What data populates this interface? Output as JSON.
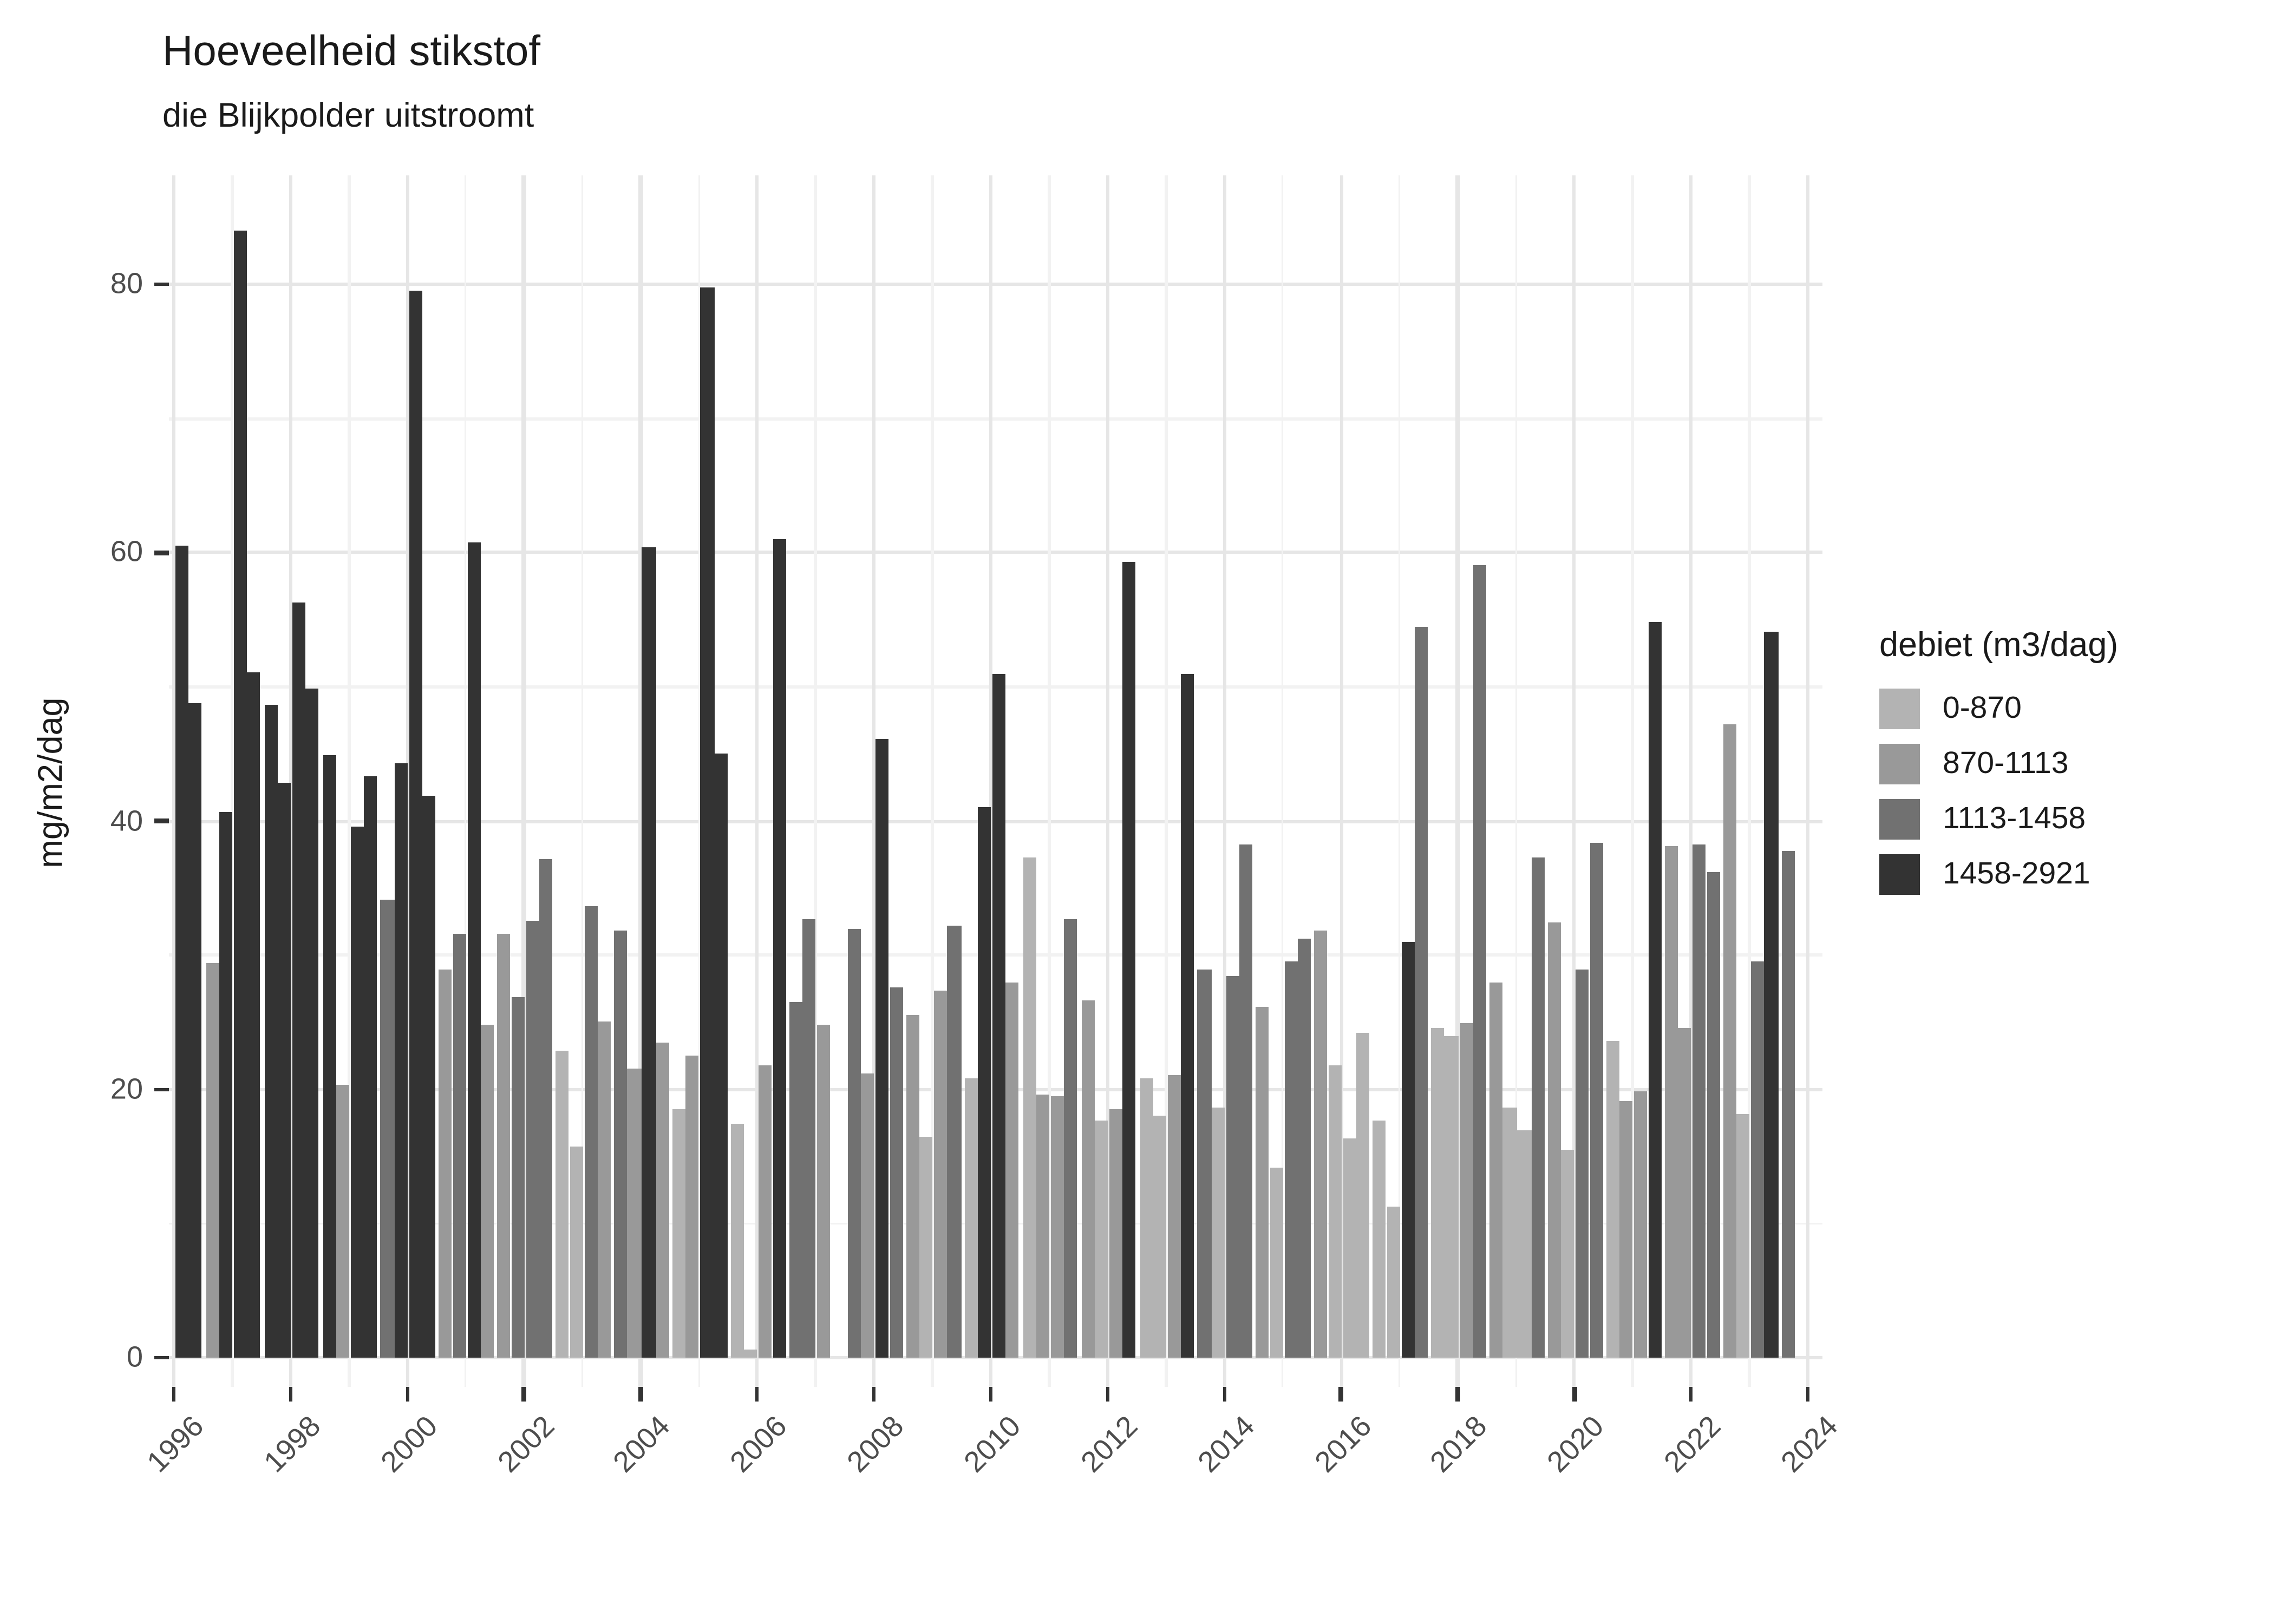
{
  "title": "Hoeveelheid stikstof",
  "subtitle": "die Blijkpolder uitstroomt",
  "y_axis": {
    "label": "mg/m2/dag",
    "major_ticks": [
      0,
      20,
      40,
      60,
      80
    ],
    "minor_gridlines": [
      10,
      30,
      50,
      70
    ],
    "max_display": 88
  },
  "x_axis": {
    "tick_years": [
      1996,
      1998,
      2000,
      2002,
      2004,
      2006,
      2008,
      2010,
      2012,
      2014,
      2016,
      2018,
      2020,
      2022,
      2024
    ],
    "minor_years": [
      1997,
      1999,
      2001,
      2003,
      2005,
      2007,
      2009,
      2011,
      2013,
      2015,
      2017,
      2019,
      2021,
      2023
    ],
    "start_year": 1996,
    "end_year": 2024
  },
  "legend": {
    "title": "debiet (m3/dag)",
    "items": [
      {
        "label": "0-870",
        "color": "#b3b3b3"
      },
      {
        "label": "870-1113",
        "color": "#999999"
      },
      {
        "label": "1113-1458",
        "color": "#717171"
      },
      {
        "label": "1458-2921",
        "color": "#333333"
      }
    ]
  },
  "chart_data": {
    "type": "bar",
    "title": "Hoeveelheid stikstof",
    "subtitle": "die Blijkpolder uitstroomt",
    "xlabel": "",
    "ylabel": "mg/m2/dag",
    "ylim": [
      0,
      88
    ],
    "x_range_years": [
      1996,
      2024
    ],
    "grid": true,
    "legend_position": "right",
    "legend_title": "debiet (m3/dag)",
    "categories": [
      "0-870",
      "870-1113",
      "1113-1458",
      "1458-2921"
    ],
    "category_colors": [
      "#b3b3b3",
      "#999999",
      "#717171",
      "#333333"
    ],
    "bars_note": "each bar = [year, quarter(1-4), value mg/m2/dag, category index into categories]",
    "bars": [
      [
        1996,
        1,
        60.5,
        3
      ],
      [
        1996,
        2,
        48.8,
        3
      ],
      [
        1996,
        3,
        29.4,
        1
      ],
      [
        1996,
        4,
        40.7,
        3
      ],
      [
        1997,
        1,
        84.0,
        3
      ],
      [
        1997,
        2,
        51.1,
        3
      ],
      [
        1997,
        3,
        48.7,
        3
      ],
      [
        1997,
        4,
        42.9,
        3
      ],
      [
        1998,
        1,
        56.3,
        3
      ],
      [
        1998,
        2,
        49.9,
        3
      ],
      [
        1998,
        3,
        44.9,
        3
      ],
      [
        1998,
        4,
        20.3,
        1
      ],
      [
        1999,
        1,
        39.6,
        3
      ],
      [
        1999,
        2,
        43.4,
        3
      ],
      [
        1999,
        3,
        34.2,
        2
      ],
      [
        1999,
        4,
        44.3,
        3
      ],
      [
        2000,
        1,
        79.5,
        3
      ],
      [
        2000,
        2,
        41.9,
        3
      ],
      [
        2000,
        3,
        29.0,
        1
      ],
      [
        2000,
        4,
        31.6,
        2
      ],
      [
        2001,
        1,
        60.8,
        3
      ],
      [
        2001,
        2,
        24.8,
        1
      ],
      [
        2001,
        3,
        31.6,
        1
      ],
      [
        2001,
        4,
        26.9,
        2
      ],
      [
        2002,
        1,
        32.6,
        2
      ],
      [
        2002,
        2,
        37.2,
        2
      ],
      [
        2002,
        3,
        22.9,
        0
      ],
      [
        2002,
        4,
        15.7,
        0
      ],
      [
        2003,
        1,
        33.7,
        2
      ],
      [
        2003,
        2,
        25.1,
        1
      ],
      [
        2003,
        3,
        31.8,
        2
      ],
      [
        2003,
        4,
        21.6,
        1
      ],
      [
        2004,
        1,
        60.4,
        3
      ],
      [
        2004,
        2,
        23.5,
        1
      ],
      [
        2004,
        3,
        18.5,
        0
      ],
      [
        2004,
        4,
        22.5,
        1
      ],
      [
        2005,
        1,
        79.8,
        3
      ],
      [
        2005,
        2,
        45.0,
        3
      ],
      [
        2005,
        3,
        17.4,
        0
      ],
      [
        2005,
        4,
        0.6,
        0
      ],
      [
        2006,
        1,
        21.8,
        1
      ],
      [
        2006,
        2,
        61.0,
        3
      ],
      [
        2006,
        3,
        26.5,
        2
      ],
      [
        2006,
        4,
        32.7,
        2
      ],
      [
        2007,
        1,
        24.8,
        1
      ],
      [
        2007,
        3,
        32.0,
        2
      ],
      [
        2007,
        4,
        21.2,
        1
      ],
      [
        2008,
        1,
        46.1,
        3
      ],
      [
        2008,
        2,
        27.6,
        2
      ],
      [
        2008,
        3,
        25.5,
        1
      ],
      [
        2008,
        4,
        16.5,
        0
      ],
      [
        2009,
        1,
        27.4,
        1
      ],
      [
        2009,
        2,
        32.2,
        2
      ],
      [
        2009,
        3,
        20.8,
        0
      ],
      [
        2009,
        4,
        41.1,
        3
      ],
      [
        2010,
        1,
        51.0,
        3
      ],
      [
        2010,
        2,
        28.0,
        1
      ],
      [
        2010,
        3,
        37.3,
        0
      ],
      [
        2010,
        4,
        19.6,
        1
      ],
      [
        2011,
        1,
        19.5,
        1
      ],
      [
        2011,
        2,
        32.7,
        2
      ],
      [
        2011,
        3,
        26.6,
        1
      ],
      [
        2011,
        4,
        17.7,
        0
      ],
      [
        2012,
        1,
        18.5,
        1
      ],
      [
        2012,
        2,
        59.3,
        3
      ],
      [
        2012,
        3,
        20.8,
        0
      ],
      [
        2012,
        4,
        18.1,
        0
      ],
      [
        2013,
        1,
        21.1,
        1
      ],
      [
        2013,
        2,
        51.0,
        3
      ],
      [
        2013,
        3,
        29.0,
        2
      ],
      [
        2013,
        4,
        18.7,
        0
      ],
      [
        2014,
        1,
        28.5,
        2
      ],
      [
        2014,
        2,
        38.3,
        2
      ],
      [
        2014,
        3,
        26.2,
        1
      ],
      [
        2014,
        4,
        14.2,
        0
      ],
      [
        2015,
        1,
        29.5,
        2
      ],
      [
        2015,
        2,
        31.2,
        2
      ],
      [
        2015,
        3,
        31.9,
        1
      ],
      [
        2015,
        4,
        21.8,
        0
      ],
      [
        2016,
        1,
        16.3,
        0
      ],
      [
        2016,
        2,
        24.2,
        0
      ],
      [
        2016,
        3,
        17.7,
        0
      ],
      [
        2016,
        4,
        11.3,
        0
      ],
      [
        2017,
        1,
        31.0,
        3
      ],
      [
        2017,
        2,
        54.5,
        2
      ],
      [
        2017,
        3,
        24.6,
        0
      ],
      [
        2017,
        4,
        24.0,
        0
      ],
      [
        2018,
        1,
        24.9,
        1
      ],
      [
        2018,
        2,
        59.1,
        2
      ],
      [
        2018,
        3,
        28.0,
        1
      ],
      [
        2018,
        4,
        18.7,
        0
      ],
      [
        2019,
        1,
        17.0,
        0
      ],
      [
        2019,
        2,
        37.3,
        2
      ],
      [
        2019,
        3,
        32.5,
        1
      ],
      [
        2019,
        4,
        15.5,
        0
      ],
      [
        2020,
        1,
        29.0,
        2
      ],
      [
        2020,
        2,
        38.4,
        2
      ],
      [
        2020,
        3,
        23.6,
        0
      ],
      [
        2020,
        4,
        19.1,
        1
      ],
      [
        2021,
        1,
        19.9,
        1
      ],
      [
        2021,
        2,
        54.8,
        3
      ],
      [
        2021,
        3,
        38.2,
        1
      ],
      [
        2021,
        4,
        24.6,
        1
      ],
      [
        2022,
        1,
        38.3,
        2
      ],
      [
        2022,
        2,
        36.2,
        2
      ],
      [
        2022,
        3,
        47.2,
        1
      ],
      [
        2022,
        4,
        18.2,
        0
      ],
      [
        2023,
        1,
        29.6,
        2
      ],
      [
        2023,
        2,
        54.1,
        3
      ],
      [
        2023,
        3,
        37.8,
        2
      ]
    ]
  }
}
